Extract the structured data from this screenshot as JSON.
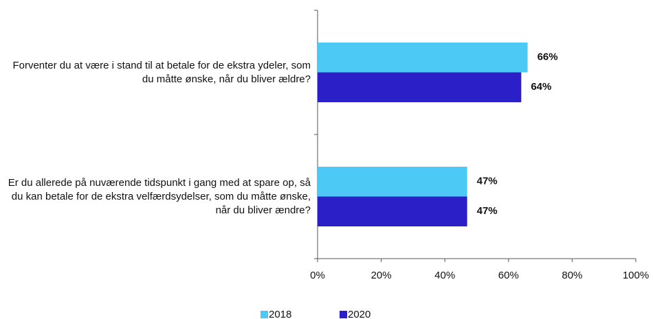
{
  "chart_data": {
    "type": "bar",
    "orientation": "horizontal",
    "categories": [
      "Forventer du at være i stand til at betale for de ekstra ydeler, som du måtte ønske, når du bliver ældre?",
      "Er du allerede på nuværende tidspunkt i gang med at spare op, så du kan betale for de ekstra velfærdsydelser, som du måtte ønske, når du bliver ændre?"
    ],
    "series": [
      {
        "name": "2018",
        "color": "#4dc9f6",
        "values": [
          66,
          47
        ],
        "value_labels": [
          "66%",
          "47%"
        ]
      },
      {
        "name": "2020",
        "color": "#2b1fc8",
        "values": [
          64,
          47
        ],
        "value_labels": [
          "64%",
          "47%"
        ]
      }
    ],
    "xlim": [
      0,
      100
    ],
    "xticks": [
      {
        "value": 0,
        "label": "0%"
      },
      {
        "value": 20,
        "label": "20%"
      },
      {
        "value": 40,
        "label": "40%"
      },
      {
        "value": 60,
        "label": "60%"
      },
      {
        "value": 80,
        "label": "80%"
      },
      {
        "value": 100,
        "label": "100%"
      }
    ],
    "legend": "bottom"
  }
}
